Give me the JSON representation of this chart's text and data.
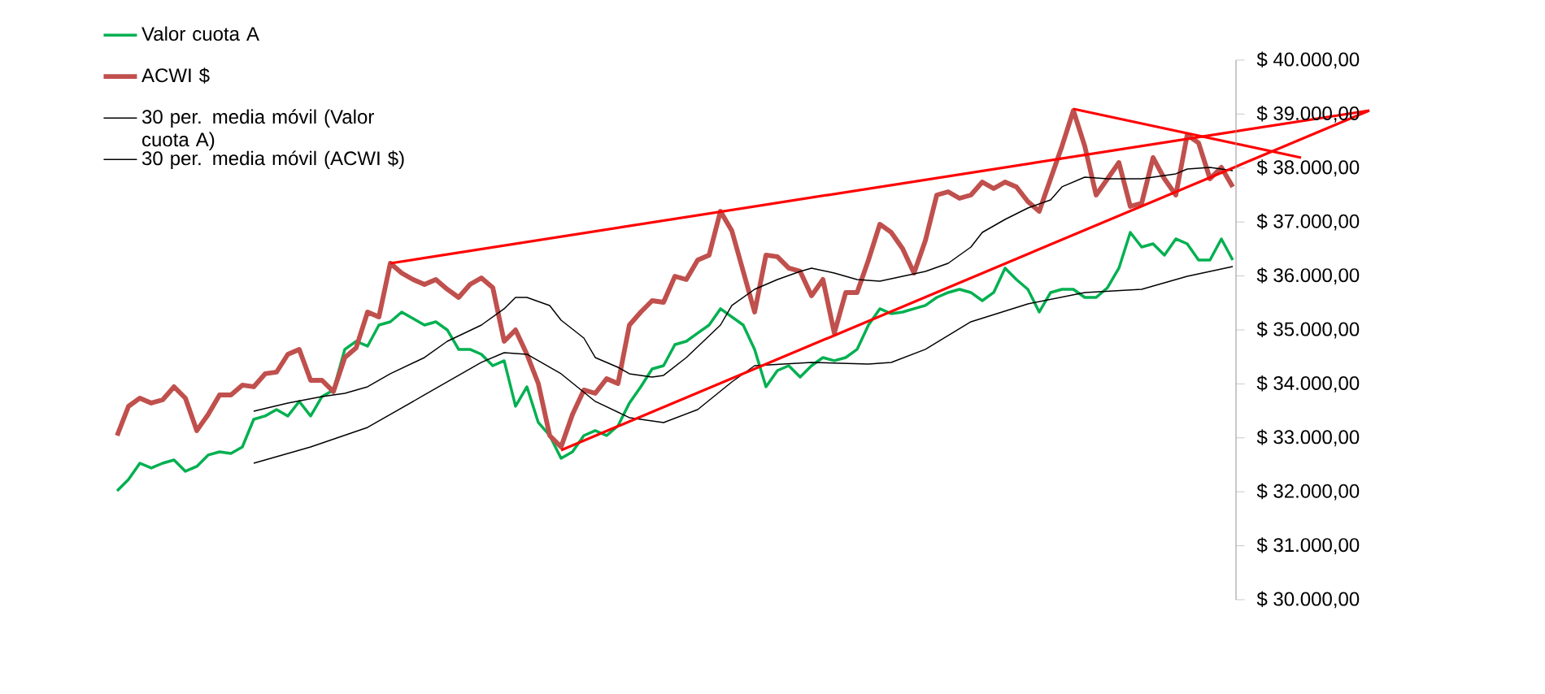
{
  "chart_data": {
    "type": "line",
    "ylim": [
      30000,
      40000
    ],
    "categories": [
      null,
      null,
      null,
      null,
      null,
      null,
      null,
      null,
      null,
      null,
      null,
      null,
      null,
      null,
      null,
      null,
      null,
      null,
      null,
      null,
      null,
      null,
      null,
      null,
      null,
      null,
      null,
      null,
      null,
      null,
      null,
      null,
      null,
      null,
      null,
      null,
      null,
      null,
      null,
      null,
      null,
      null,
      null,
      null,
      null,
      null,
      null,
      null,
      null,
      null,
      null,
      null,
      null,
      null,
      null,
      null,
      null,
      null,
      null,
      null,
      null,
      null,
      null,
      null,
      null,
      null,
      null,
      null,
      null,
      null,
      null,
      null,
      null,
      null,
      null,
      null,
      null,
      null,
      null,
      null,
      null,
      null,
      null,
      null,
      null,
      null,
      null,
      null,
      null,
      null,
      null,
      null,
      null,
      null,
      null,
      null,
      null,
      null,
      null,
      null,
      null,
      null,
      null,
      null,
      null,
      null,
      null,
      null,
      null,
      null,
      null
    ],
    "yticks": [
      {
        "value": 30000,
        "label": "$ 30.000,00"
      },
      {
        "value": 31000,
        "label": "$ 31.000,00"
      },
      {
        "value": 32000,
        "label": "$ 32.000,00"
      },
      {
        "value": 33000,
        "label": "$ 33.000,00"
      },
      {
        "value": 34000,
        "label": "$ 34.000,00"
      },
      {
        "value": 35000,
        "label": "$ 35.000,00"
      },
      {
        "value": 36000,
        "label": "$ 36.000,00"
      },
      {
        "value": 37000,
        "label": "$ 37.000,00"
      },
      {
        "value": 38000,
        "label": "$ 38.000,00"
      },
      {
        "value": 39000,
        "label": "$ 39.000,00"
      },
      {
        "value": 40000,
        "label": "$ 40.000,00"
      }
    ],
    "tick_labels": "y",
    "legend": "top left",
    "marker": "none",
    "line_style": "solid",
    "series": [
      {
        "name": "Valor cuota A",
        "color": "#00b050",
        "values": [
          32018,
          32229,
          32530,
          32440,
          32530,
          32590,
          32380,
          32470,
          32681,
          32741,
          32711,
          32831,
          33343,
          33404,
          33524,
          33404,
          33675,
          33404,
          33765,
          33886,
          34639,
          34789,
          34699,
          35090,
          35150,
          35331,
          35211,
          35090,
          35150,
          35000,
          34639,
          34639,
          34548,
          34337,
          34428,
          33585,
          33946,
          33283,
          33042,
          32620,
          32741,
          33042,
          33133,
          33042,
          33223,
          33645,
          33946,
          34277,
          34337,
          34729,
          34789,
          34940,
          35090,
          35392,
          35241,
          35090,
          34639,
          33946,
          34247,
          34337,
          34127,
          34337,
          34488,
          34428,
          34488,
          34639,
          35090,
          35392,
          35301,
          35331,
          35392,
          35452,
          35602,
          35693,
          35753,
          35693,
          35542,
          35693,
          36145,
          35934,
          35753,
          35331,
          35693,
          35753,
          35753,
          35602,
          35602,
          35783,
          36145,
          36807,
          36536,
          36596,
          36386,
          36687,
          36596,
          36295,
          36295,
          36687,
          36295,
          null,
          null,
          null,
          null,
          null,
          null,
          null,
          null,
          null,
          null,
          null,
          null
        ]
      },
      {
        "name": "ACWI $",
        "color": "#c0504d",
        "values": [
          33042,
          33584,
          33735,
          33645,
          33705,
          33946,
          33735,
          33133,
          33434,
          33795,
          33795,
          33976,
          33946,
          34187,
          34217,
          34548,
          34639,
          34066,
          34066,
          33856,
          34488,
          34669,
          35331,
          35241,
          36235,
          36054,
          35934,
          35843,
          35934,
          35753,
          35602,
          35843,
          35964,
          35783,
          34789,
          35000,
          34548,
          34006,
          33042,
          32831,
          33434,
          33886,
          33825,
          34096,
          34006,
          35090,
          35331,
          35542,
          35512,
          35994,
          35934,
          36295,
          36386,
          37199,
          36837,
          36085,
          35331,
          36386,
          36356,
          36145,
          36085,
          35633,
          35934,
          34940,
          35693,
          35693,
          36295,
          36958,
          36807,
          36506,
          36054,
          36657,
          37500,
          37560,
          37440,
          37500,
          37741,
          37620,
          37741,
          37651,
          37380,
          37199,
          37801,
          38404,
          39066,
          38404,
          37500,
          37801,
          38102,
          37289,
          37349,
          38193,
          37801,
          37500,
          38614,
          38464,
          37801,
          38012,
          37651,
          null,
          null,
          null,
          null,
          null,
          null,
          null,
          null,
          null,
          null,
          null,
          null
        ]
      },
      {
        "name": "30 per. media móvil (Valor cuota A)",
        "color": "#000000",
        "values": [
          null,
          null,
          null,
          null,
          null,
          null,
          null,
          null,
          null,
          null,
          null,
          null,
          32530,
          null,
          null,
          null,
          null,
          32831,
          null,
          null,
          null,
          null,
          33193,
          null,
          null,
          null,
          null,
          33795,
          null,
          null,
          null,
          null,
          34398,
          null,
          34578,
          null,
          34548,
          null,
          null,
          34187,
          null,
          null,
          33675,
          null,
          null,
          33374,
          null,
          null,
          33283,
          null,
          null,
          33524,
          null,
          null,
          34036,
          null,
          34337,
          null,
          null,
          null,
          null,
          34398,
          null,
          null,
          null,
          null,
          34368,
          null,
          34398,
          null,
          null,
          34639,
          null,
          null,
          null,
          35151,
          null,
          null,
          null,
          null,
          35482,
          null,
          null,
          null,
          null,
          35693,
          null,
          null,
          null,
          null,
          35753,
          null,
          null,
          null,
          35994,
          null,
          null,
          null,
          36175,
          null,
          null,
          null,
          null,
          null,
          null,
          null,
          null,
          null,
          null,
          null,
          null
        ]
      },
      {
        "name": "30 per. media móvil (ACWI $)",
        "color": "#000000",
        "values": [
          null,
          null,
          null,
          null,
          null,
          null,
          null,
          null,
          null,
          null,
          null,
          null,
          33494,
          null,
          null,
          33645,
          null,
          null,
          33765,
          null,
          33825,
          null,
          33946,
          null,
          34187,
          null,
          null,
          34488,
          null,
          34789,
          null,
          null,
          35090,
          null,
          35392,
          35602,
          35602,
          null,
          35452,
          35181,
          null,
          34849,
          34488,
          null,
          34307,
          34187,
          null,
          34127,
          34157,
          null,
          34488,
          null,
          null,
          35090,
          35452,
          null,
          35753,
          null,
          35934,
          null,
          36084,
          36145,
          null,
          36054,
          null,
          35934,
          null,
          35904,
          null,
          35994,
          null,
          36084,
          null,
          36235,
          null,
          36536,
          36807,
          null,
          37048,
          null,
          37259,
          null,
          37410,
          37651,
          null,
          37831,
          null,
          37801,
          37801,
          null,
          37801,
          null,
          null,
          37892,
          37982,
          null,
          38012,
          null,
          37952,
          null,
          null,
          null,
          null,
          null,
          null,
          null,
          null,
          null,
          null,
          null,
          null
        ]
      },
      {
        "type": "line",
        "color": "#ff0000",
        "values": [
          null,
          null,
          null,
          null,
          null,
          null,
          null,
          null,
          null,
          null,
          null,
          null,
          null,
          null,
          null,
          null,
          null,
          null,
          null,
          null,
          null,
          null,
          null,
          null,
          36235,
          null,
          null,
          null,
          null,
          null,
          null,
          null,
          null,
          null,
          null,
          null,
          null,
          null,
          null,
          null,
          null,
          null,
          null,
          null,
          null,
          null,
          null,
          null,
          null,
          null,
          null,
          null,
          null,
          null,
          null,
          null,
          null,
          null,
          null,
          null,
          null,
          null,
          null,
          null,
          null,
          null,
          null,
          null,
          null,
          null,
          null,
          null,
          null,
          null,
          null,
          null,
          null,
          null,
          null,
          null,
          null,
          null,
          null,
          null,
          null,
          null,
          null,
          null,
          null,
          null,
          null,
          null,
          null,
          null,
          null,
          null,
          null,
          null,
          null,
          null,
          null,
          null,
          null,
          null,
          null,
          null,
          null,
          null,
          null,
          null,
          39066
        ]
      },
      {
        "type": "line",
        "color": "#ff0000",
        "values": [
          null,
          null,
          null,
          null,
          null,
          null,
          null,
          null,
          null,
          null,
          null,
          null,
          null,
          null,
          null,
          null,
          null,
          null,
          null,
          null,
          null,
          null,
          null,
          null,
          null,
          null,
          null,
          null,
          null,
          null,
          null,
          null,
          null,
          null,
          null,
          null,
          null,
          null,
          null,
          32771,
          null,
          null,
          null,
          null,
          null,
          null,
          null,
          null,
          null,
          null,
          null,
          null,
          null,
          null,
          null,
          null,
          null,
          null,
          null,
          null,
          null,
          null,
          null,
          null,
          null,
          null,
          null,
          null,
          null,
          null,
          null,
          null,
          null,
          null,
          null,
          null,
          null,
          null,
          null,
          null,
          null,
          null,
          null,
          null,
          null,
          null,
          null,
          null,
          null,
          null,
          null,
          null,
          null,
          null,
          null,
          null,
          null,
          null,
          null,
          null,
          null,
          null,
          null,
          null,
          null,
          null,
          null,
          null,
          null,
          null,
          39066
        ]
      },
      {
        "type": "line",
        "color": "#ff0000",
        "values": [
          null,
          null,
          null,
          null,
          null,
          null,
          null,
          null,
          null,
          null,
          null,
          null,
          null,
          null,
          null,
          null,
          null,
          null,
          null,
          null,
          null,
          null,
          null,
          null,
          null,
          null,
          null,
          null,
          null,
          null,
          null,
          null,
          null,
          null,
          null,
          null,
          null,
          null,
          null,
          null,
          null,
          null,
          null,
          null,
          null,
          null,
          null,
          null,
          null,
          null,
          null,
          null,
          null,
          null,
          null,
          null,
          null,
          null,
          null,
          null,
          null,
          null,
          null,
          null,
          null,
          null,
          null,
          null,
          null,
          null,
          null,
          null,
          null,
          null,
          null,
          null,
          null,
          null,
          null,
          null,
          null,
          null,
          null,
          null,
          39096,
          null,
          null,
          null,
          null,
          null,
          null,
          null,
          null,
          null,
          null,
          null,
          null,
          null,
          null,
          null,
          null,
          null,
          null,
          null,
          38193,
          null,
          null,
          null,
          null,
          null,
          null
        ]
      }
    ]
  }
}
